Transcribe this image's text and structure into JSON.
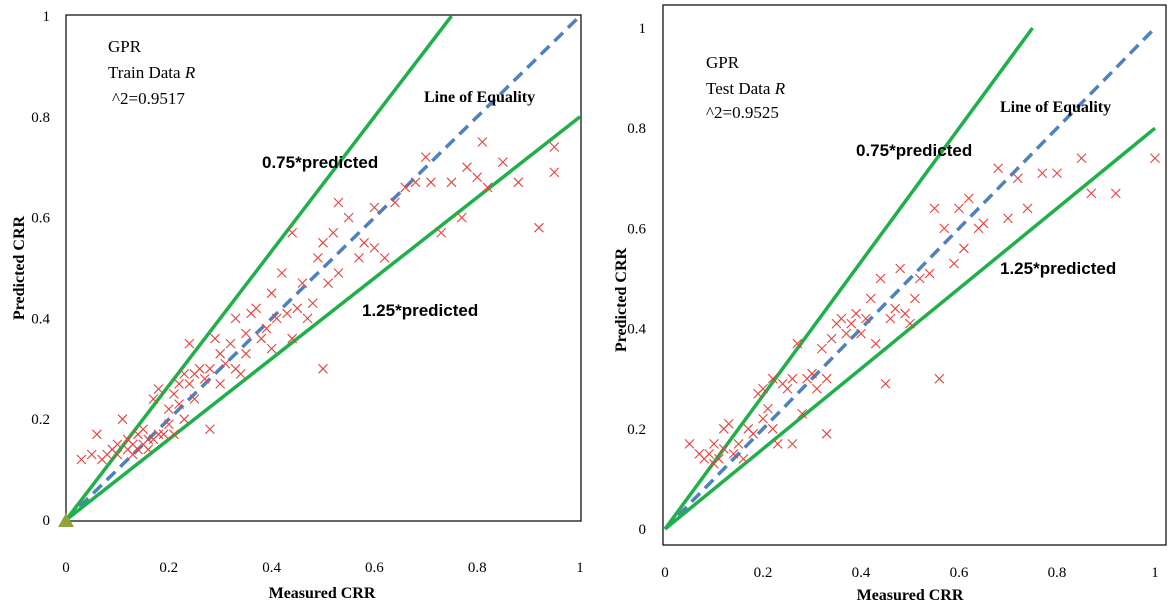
{
  "chart_data": [
    {
      "type": "scatter",
      "title": "",
      "xlabel": "Measured CRR",
      "ylabel": "Predicted CRR",
      "xlim": [
        0,
        1
      ],
      "ylim": [
        0,
        1
      ],
      "x_ticks": [
        "0",
        "0.2",
        "0.4",
        "0.6",
        "0.8",
        "1"
      ],
      "y_ticks": [
        "0",
        "0.2",
        "0.4",
        "0.6",
        "0.8",
        "1"
      ],
      "annotation": {
        "line1": "GPR",
        "line2_prefix": "Train Data ",
        "line2_italic": "R",
        "line3": "^2=0.9517"
      },
      "line_labels": {
        "equality": "Line of Equality",
        "upper": "0.75*predicted",
        "lower": "1.25*predicted"
      },
      "lines": [
        {
          "kind": "equality",
          "slope": 1,
          "color": "#4f81bd",
          "style": "dashed"
        },
        {
          "kind": "upper",
          "slope": 1.3333,
          "color": "#1fb04a",
          "style": "solid"
        },
        {
          "kind": "lower",
          "slope": 0.8,
          "color": "#1fb04a",
          "style": "solid"
        }
      ],
      "series": [
        {
          "marker": "x",
          "color": "#e8413c",
          "points": [
            [
              0.03,
              0.12
            ],
            [
              0.05,
              0.13
            ],
            [
              0.06,
              0.17
            ],
            [
              0.07,
              0.12
            ],
            [
              0.08,
              0.13
            ],
            [
              0.09,
              0.14
            ],
            [
              0.1,
              0.13
            ],
            [
              0.1,
              0.15
            ],
            [
              0.11,
              0.2
            ],
            [
              0.12,
              0.14
            ],
            [
              0.12,
              0.16
            ],
            [
              0.13,
              0.15
            ],
            [
              0.13,
              0.13
            ],
            [
              0.14,
              0.14
            ],
            [
              0.14,
              0.17
            ],
            [
              0.15,
              0.15
            ],
            [
              0.15,
              0.18
            ],
            [
              0.16,
              0.14
            ],
            [
              0.16,
              0.16
            ],
            [
              0.17,
              0.24
            ],
            [
              0.17,
              0.16
            ],
            [
              0.18,
              0.17
            ],
            [
              0.18,
              0.26
            ],
            [
              0.19,
              0.17
            ],
            [
              0.2,
              0.19
            ],
            [
              0.2,
              0.22
            ],
            [
              0.21,
              0.17
            ],
            [
              0.21,
              0.25
            ],
            [
              0.22,
              0.27
            ],
            [
              0.22,
              0.23
            ],
            [
              0.23,
              0.29
            ],
            [
              0.23,
              0.2
            ],
            [
              0.24,
              0.27
            ],
            [
              0.24,
              0.35
            ],
            [
              0.25,
              0.29
            ],
            [
              0.25,
              0.24
            ],
            [
              0.26,
              0.3
            ],
            [
              0.27,
              0.28
            ],
            [
              0.28,
              0.3
            ],
            [
              0.28,
              0.18
            ],
            [
              0.29,
              0.36
            ],
            [
              0.3,
              0.27
            ],
            [
              0.3,
              0.33
            ],
            [
              0.31,
              0.31
            ],
            [
              0.32,
              0.35
            ],
            [
              0.33,
              0.3
            ],
            [
              0.33,
              0.4
            ],
            [
              0.34,
              0.29
            ],
            [
              0.35,
              0.37
            ],
            [
              0.35,
              0.33
            ],
            [
              0.36,
              0.41
            ],
            [
              0.37,
              0.42
            ],
            [
              0.38,
              0.36
            ],
            [
              0.39,
              0.38
            ],
            [
              0.4,
              0.34
            ],
            [
              0.4,
              0.45
            ],
            [
              0.41,
              0.4
            ],
            [
              0.42,
              0.49
            ],
            [
              0.43,
              0.41
            ],
            [
              0.44,
              0.57
            ],
            [
              0.44,
              0.36
            ],
            [
              0.45,
              0.42
            ],
            [
              0.46,
              0.47
            ],
            [
              0.47,
              0.4
            ],
            [
              0.48,
              0.43
            ],
            [
              0.49,
              0.52
            ],
            [
              0.5,
              0.55
            ],
            [
              0.5,
              0.3
            ],
            [
              0.51,
              0.47
            ],
            [
              0.52,
              0.57
            ],
            [
              0.53,
              0.49
            ],
            [
              0.53,
              0.63
            ],
            [
              0.55,
              0.6
            ],
            [
              0.57,
              0.52
            ],
            [
              0.58,
              0.55
            ],
            [
              0.6,
              0.54
            ],
            [
              0.6,
              0.62
            ],
            [
              0.62,
              0.52
            ],
            [
              0.64,
              0.63
            ],
            [
              0.66,
              0.66
            ],
            [
              0.68,
              0.67
            ],
            [
              0.7,
              0.72
            ],
            [
              0.71,
              0.67
            ],
            [
              0.73,
              0.57
            ],
            [
              0.75,
              0.67
            ],
            [
              0.77,
              0.6
            ],
            [
              0.78,
              0.7
            ],
            [
              0.8,
              0.68
            ],
            [
              0.81,
              0.75
            ],
            [
              0.82,
              0.66
            ],
            [
              0.85,
              0.71
            ],
            [
              0.88,
              0.67
            ],
            [
              0.92,
              0.58
            ],
            [
              0.95,
              0.74
            ],
            [
              0.95,
              0.69
            ]
          ]
        }
      ]
    },
    {
      "type": "scatter",
      "title": "",
      "xlabel": "Measured CRR",
      "ylabel": "Predicted CRR",
      "xlim": [
        0,
        1
      ],
      "ylim": [
        0,
        1
      ],
      "x_ticks": [
        "0",
        "0.2",
        "0.4",
        "0.6",
        "0.8",
        "1"
      ],
      "y_ticks": [
        "0",
        "0.2",
        "0.4",
        "0.6",
        "0.8",
        "1"
      ],
      "annotation": {
        "line1": "GPR",
        "line2_prefix": "Test Data ",
        "line2_italic": "R",
        "line3": "^2=0.9525"
      },
      "line_labels": {
        "equality": "Line of Equality",
        "upper": "0.75*predicted",
        "lower": "1.25*predicted"
      },
      "lines": [
        {
          "kind": "equality",
          "slope": 1,
          "color": "#4f81bd",
          "style": "dashed"
        },
        {
          "kind": "upper",
          "slope": 1.3333,
          "color": "#1fb04a",
          "style": "solid"
        },
        {
          "kind": "lower",
          "slope": 0.8,
          "color": "#1fb04a",
          "style": "solid"
        }
      ],
      "series": [
        {
          "marker": "x",
          "color": "#e8413c",
          "points": [
            [
              0.05,
              0.17
            ],
            [
              0.07,
              0.15
            ],
            [
              0.08,
              0.14
            ],
            [
              0.09,
              0.15
            ],
            [
              0.1,
              0.13
            ],
            [
              0.1,
              0.17
            ],
            [
              0.11,
              0.14
            ],
            [
              0.12,
              0.16
            ],
            [
              0.12,
              0.2
            ],
            [
              0.13,
              0.21
            ],
            [
              0.14,
              0.15
            ],
            [
              0.15,
              0.17
            ],
            [
              0.16,
              0.14
            ],
            [
              0.17,
              0.2
            ],
            [
              0.18,
              0.19
            ],
            [
              0.19,
              0.27
            ],
            [
              0.2,
              0.28
            ],
            [
              0.2,
              0.22
            ],
            [
              0.21,
              0.24
            ],
            [
              0.22,
              0.2
            ],
            [
              0.22,
              0.3
            ],
            [
              0.23,
              0.17
            ],
            [
              0.24,
              0.29
            ],
            [
              0.25,
              0.28
            ],
            [
              0.26,
              0.3
            ],
            [
              0.26,
              0.17
            ],
            [
              0.27,
              0.37
            ],
            [
              0.28,
              0.23
            ],
            [
              0.29,
              0.3
            ],
            [
              0.3,
              0.31
            ],
            [
              0.31,
              0.28
            ],
            [
              0.32,
              0.36
            ],
            [
              0.33,
              0.3
            ],
            [
              0.33,
              0.19
            ],
            [
              0.34,
              0.38
            ],
            [
              0.35,
              0.41
            ],
            [
              0.36,
              0.42
            ],
            [
              0.37,
              0.39
            ],
            [
              0.38,
              0.41
            ],
            [
              0.39,
              0.43
            ],
            [
              0.4,
              0.39
            ],
            [
              0.41,
              0.42
            ],
            [
              0.42,
              0.46
            ],
            [
              0.43,
              0.37
            ],
            [
              0.44,
              0.5
            ],
            [
              0.45,
              0.29
            ],
            [
              0.46,
              0.42
            ],
            [
              0.47,
              0.44
            ],
            [
              0.48,
              0.52
            ],
            [
              0.49,
              0.43
            ],
            [
              0.5,
              0.41
            ],
            [
              0.51,
              0.46
            ],
            [
              0.52,
              0.5
            ],
            [
              0.54,
              0.51
            ],
            [
              0.55,
              0.64
            ],
            [
              0.56,
              0.3
            ],
            [
              0.57,
              0.6
            ],
            [
              0.59,
              0.53
            ],
            [
              0.6,
              0.64
            ],
            [
              0.61,
              0.56
            ],
            [
              0.62,
              0.66
            ],
            [
              0.64,
              0.6
            ],
            [
              0.65,
              0.61
            ],
            [
              0.68,
              0.72
            ],
            [
              0.7,
              0.62
            ],
            [
              0.72,
              0.7
            ],
            [
              0.74,
              0.64
            ],
            [
              0.77,
              0.71
            ],
            [
              0.8,
              0.71
            ],
            [
              0.85,
              0.74
            ],
            [
              0.87,
              0.67
            ],
            [
              0.92,
              0.67
            ],
            [
              1.0,
              0.74
            ]
          ]
        }
      ]
    }
  ]
}
